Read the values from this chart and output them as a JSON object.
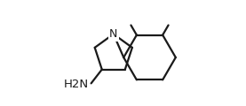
{
  "bg_color": "#ffffff",
  "line_color": "#1a1a1a",
  "line_width": 1.6,
  "H2N_label": "H2N",
  "H2N_fontsize": 9.5,
  "N_label": "N",
  "N_fontsize": 9.0
}
